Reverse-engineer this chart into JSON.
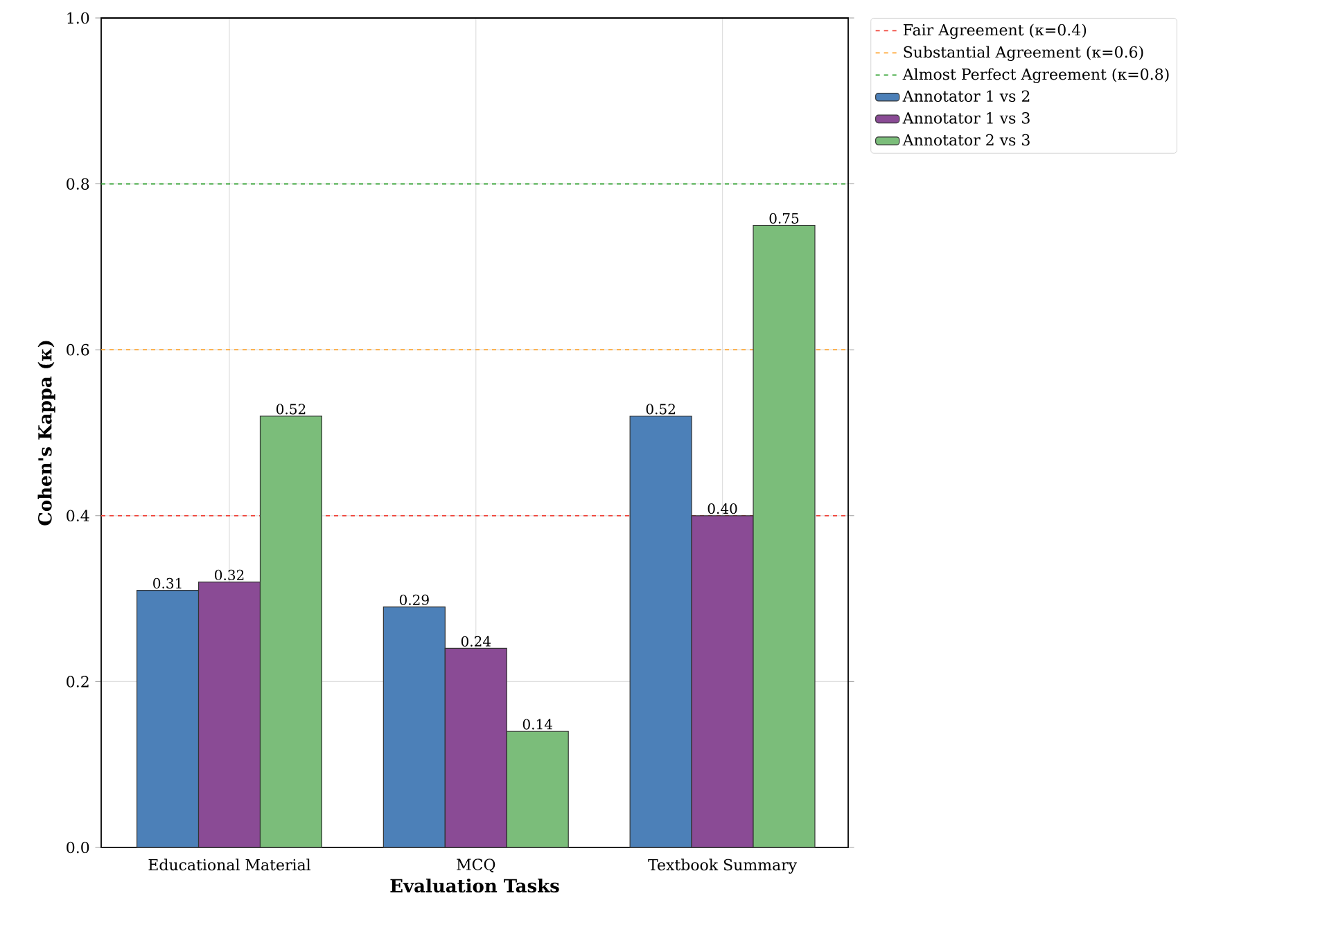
{
  "chart_data": {
    "type": "bar",
    "xlabel": "Evaluation Tasks",
    "ylabel": "Cohen's Kappa (κ)",
    "categories": [
      "Educational Material",
      "MCQ",
      "Textbook Summary"
    ],
    "series": [
      {
        "name": "Annotator 1 vs 2",
        "color": "#4c80b8",
        "values": [
          0.31,
          0.29,
          0.52
        ],
        "value_labels": [
          "0.31",
          "0.29",
          "0.52"
        ]
      },
      {
        "name": "Annotator 1 vs 3",
        "color": "#8a4b95",
        "values": [
          0.32,
          0.24,
          0.4
        ],
        "value_labels": [
          "0.32",
          "0.24",
          "0.40"
        ]
      },
      {
        "name": "Annotator 2 vs 3",
        "color": "#7bbd7a",
        "values": [
          0.52,
          0.14,
          0.75
        ],
        "value_labels": [
          "0.52",
          "0.14",
          "0.75"
        ]
      }
    ],
    "ylim": [
      0,
      1
    ],
    "yticks": [
      {
        "value": 0,
        "label": "0.0"
      },
      {
        "value": 0.2,
        "label": "0.2"
      },
      {
        "value": 0.4,
        "label": "0.4"
      },
      {
        "value": 0.6,
        "label": "0.6"
      },
      {
        "value": 0.8,
        "label": "0.8"
      },
      {
        "value": 1,
        "label": "1.0"
      }
    ],
    "ref_lines": [
      {
        "axis": "y",
        "value": 0.4,
        "label": "Fair Agreement (κ=0.4)",
        "color": "#f0443a",
        "line_style": "dashed"
      },
      {
        "axis": "y",
        "value": 0.6,
        "label": "Substantial Agreement (κ=0.6)",
        "color": "#ffa530",
        "line_style": "dashed"
      },
      {
        "axis": "y",
        "value": 0.8,
        "label": "Almost Perfect Agreement (κ=0.8)",
        "color": "#2ca02c",
        "line_style": "dashed"
      }
    ],
    "grid": true,
    "legend": "top right"
  }
}
